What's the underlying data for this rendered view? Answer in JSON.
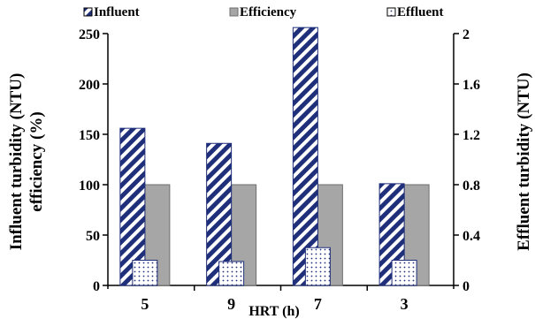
{
  "chart_data": {
    "type": "bar",
    "categories": [
      "5",
      "9",
      "7",
      "3"
    ],
    "xlabel": "HRT (h)",
    "ylabel_left": [
      "Influent turbidity (NTU)",
      "efficiency (%)"
    ],
    "ylabel_right": "Effluent turbidity (NTU)",
    "ylim_left": [
      0,
      250
    ],
    "yticks_left": [
      "0",
      "50",
      "100",
      "150",
      "200",
      "250"
    ],
    "ylim_right": [
      0,
      2
    ],
    "yticks_right": [
      "0",
      "0.4",
      "0.8",
      "1.2",
      "1.6",
      "2"
    ],
    "legend_position": "top",
    "grid": false,
    "series": [
      {
        "name": "Influent",
        "axis": "left",
        "values": [
          156,
          141,
          256,
          101
        ],
        "pattern": "diagonal-stripes",
        "color": "#1f2f7a"
      },
      {
        "name": "Efficiency",
        "axis": "left",
        "values": [
          100,
          100,
          100,
          100
        ],
        "pattern": "solid",
        "color": "#a6a6a6"
      },
      {
        "name": "Effluent",
        "axis": "right",
        "values": [
          0.2,
          0.19,
          0.3,
          0.2
        ],
        "pattern": "dots",
        "color": "#1f2f7a"
      }
    ]
  }
}
